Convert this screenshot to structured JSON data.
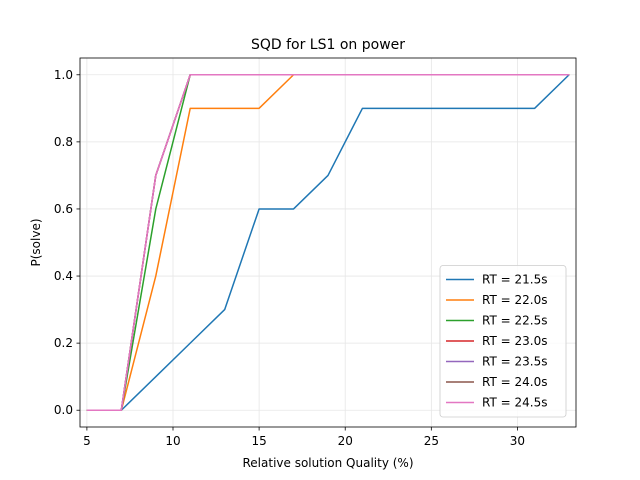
{
  "chart_data": {
    "type": "line",
    "title": "SQD for LS1 on power",
    "xlabel": "Relative solution Quality (%)",
    "ylabel": "P(solve)",
    "xlim": [
      4.6,
      33.4
    ],
    "ylim": [
      -0.05,
      1.05
    ],
    "xticks": [
      5,
      10,
      15,
      20,
      25,
      30
    ],
    "yticks": [
      0.0,
      0.2,
      0.4,
      0.6,
      0.8,
      1.0
    ],
    "xtick_labels": [
      "5",
      "10",
      "15",
      "20",
      "25",
      "30"
    ],
    "ytick_labels": [
      "0.0",
      "0.2",
      "0.4",
      "0.6",
      "0.8",
      "1.0"
    ],
    "grid": true,
    "legend_position": "lower-right",
    "series": [
      {
        "name": "RT = 21.5s",
        "color": "#1f77b4",
        "x": [
          5,
          7,
          9,
          11,
          13,
          15,
          17,
          19,
          21,
          23,
          25,
          27,
          29,
          31,
          33
        ],
        "y": [
          0.0,
          0.0,
          0.1,
          0.2,
          0.3,
          0.6,
          0.6,
          0.7,
          0.9,
          0.9,
          0.9,
          0.9,
          0.9,
          0.9,
          1.0
        ]
      },
      {
        "name": "RT = 22.0s",
        "color": "#ff7f0e",
        "x": [
          5,
          7,
          9,
          11,
          13,
          15,
          17,
          19,
          21,
          23,
          25,
          27,
          29,
          31,
          33
        ],
        "y": [
          0.0,
          0.0,
          0.4,
          0.9,
          0.9,
          0.9,
          1.0,
          1.0,
          1.0,
          1.0,
          1.0,
          1.0,
          1.0,
          1.0,
          1.0
        ]
      },
      {
        "name": "RT = 22.5s",
        "color": "#2ca02c",
        "x": [
          5,
          7,
          9,
          11,
          13,
          15,
          17,
          19,
          21,
          23,
          25,
          27,
          29,
          31,
          33
        ],
        "y": [
          0.0,
          0.0,
          0.6,
          1.0,
          1.0,
          1.0,
          1.0,
          1.0,
          1.0,
          1.0,
          1.0,
          1.0,
          1.0,
          1.0,
          1.0
        ]
      },
      {
        "name": "RT = 23.0s",
        "color": "#d62728",
        "x": [
          5,
          7,
          9,
          11,
          13,
          15,
          17,
          19,
          21,
          23,
          25,
          27,
          29,
          31,
          33
        ],
        "y": [
          0.0,
          0.0,
          0.7,
          1.0,
          1.0,
          1.0,
          1.0,
          1.0,
          1.0,
          1.0,
          1.0,
          1.0,
          1.0,
          1.0,
          1.0
        ]
      },
      {
        "name": "RT = 23.5s",
        "color": "#9467bd",
        "x": [
          5,
          7,
          9,
          11,
          13,
          15,
          17,
          19,
          21,
          23,
          25,
          27,
          29,
          31,
          33
        ],
        "y": [
          0.0,
          0.0,
          0.7,
          1.0,
          1.0,
          1.0,
          1.0,
          1.0,
          1.0,
          1.0,
          1.0,
          1.0,
          1.0,
          1.0,
          1.0
        ]
      },
      {
        "name": "RT = 24.0s",
        "color": "#8c564b",
        "x": [
          5,
          7,
          9,
          11,
          13,
          15,
          17,
          19,
          21,
          23,
          25,
          27,
          29,
          31,
          33
        ],
        "y": [
          0.0,
          0.0,
          0.7,
          1.0,
          1.0,
          1.0,
          1.0,
          1.0,
          1.0,
          1.0,
          1.0,
          1.0,
          1.0,
          1.0,
          1.0
        ]
      },
      {
        "name": "RT = 24.5s",
        "color": "#e377c2",
        "x": [
          5,
          7,
          9,
          11,
          13,
          15,
          17,
          19,
          21,
          23,
          25,
          27,
          29,
          31,
          33
        ],
        "y": [
          0.0,
          0.0,
          0.7,
          1.0,
          1.0,
          1.0,
          1.0,
          1.0,
          1.0,
          1.0,
          1.0,
          1.0,
          1.0,
          1.0,
          1.0
        ]
      }
    ]
  }
}
